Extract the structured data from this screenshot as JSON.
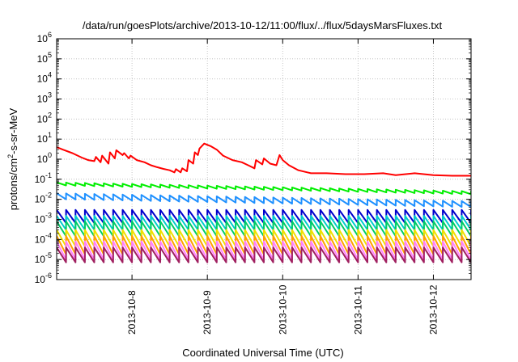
{
  "chart_data": {
    "type": "line",
    "title": "/data/run/goesPlots/archive/2013-10-12/11:00/flux/../flux/5daysMarsFluxes.txt",
    "xlabel": "Coordinated Universal Time (UTC)",
    "ylabel": "protons/cm2-s-sr-MeV",
    "y_scale": "log",
    "ylim": [
      1e-06,
      1000000.0
    ],
    "xlim": [
      "2013-10-07T00:00",
      "2013-10-12T12:00"
    ],
    "grid": true,
    "legend": "none",
    "y_ticks": [
      {
        "base": "10",
        "exp": "6"
      },
      {
        "base": "10",
        "exp": "5"
      },
      {
        "base": "10",
        "exp": "4"
      },
      {
        "base": "10",
        "exp": "3"
      },
      {
        "base": "10",
        "exp": "2"
      },
      {
        "base": "10",
        "exp": "1"
      },
      {
        "base": "10",
        "exp": "0"
      },
      {
        "base": "10",
        "exp": "-1"
      },
      {
        "base": "10",
        "exp": "-2"
      },
      {
        "base": "10",
        "exp": "-3"
      },
      {
        "base": "10",
        "exp": "-4"
      },
      {
        "base": "10",
        "exp": "-5"
      },
      {
        "base": "10",
        "exp": "-6"
      }
    ],
    "x_ticks": [
      "2013-10-8",
      "2013-10-9",
      "2013-10-10",
      "2013-10-11",
      "2013-10-12"
    ],
    "series": [
      {
        "color": "#ff0000",
        "x": [
          "2013-10-07T00:00",
          "2013-10-07T02:00",
          "2013-10-07T05:00",
          "2013-10-07T08:00",
          "2013-10-07T10:00",
          "2013-10-07T12:00",
          "2013-10-07T12:30",
          "2013-10-07T14:00",
          "2013-10-07T14:30",
          "2013-10-07T16:30",
          "2013-10-07T17:00",
          "2013-10-07T18:30",
          "2013-10-07T19:00",
          "2013-10-07T21:00",
          "2013-10-07T21:30",
          "2013-10-07T23:00",
          "2013-10-07T23:30",
          "2013-10-08T01:30",
          "2013-10-08T04:00",
          "2013-10-08T06:00",
          "2013-10-08T08:00",
          "2013-10-08T10:00",
          "2013-10-08T12:00",
          "2013-10-08T13:30",
          "2013-10-08T14:00",
          "2013-10-08T15:30",
          "2013-10-08T16:00",
          "2013-10-08T17:30",
          "2013-10-08T18:00",
          "2013-10-08T19:30",
          "2013-10-08T20:00",
          "2013-10-08T21:00",
          "2013-10-08T21:30",
          "2013-10-08T23:00",
          "2013-10-09T01:00",
          "2013-10-09T03:00",
          "2013-10-09T05:00",
          "2013-10-09T08:00",
          "2013-10-09T11:00",
          "2013-10-09T13:00",
          "2013-10-09T15:00",
          "2013-10-09T15:30",
          "2013-10-09T17:30",
          "2013-10-09T18:00",
          "2013-10-09T20:00",
          "2013-10-09T22:00",
          "2013-10-09T23:00",
          "2013-10-10T00:00",
          "2013-10-10T02:00",
          "2013-10-10T05:00",
          "2013-10-10T09:00",
          "2013-10-10T14:00",
          "2013-10-10T20:00",
          "2013-10-11T02:00",
          "2013-10-11T08:00",
          "2013-10-11T12:00",
          "2013-10-11T18:00",
          "2013-10-12T00:00",
          "2013-10-12T06:00",
          "2013-10-12T12:00"
        ],
        "y": [
          4,
          3,
          2,
          1.2,
          0.9,
          0.8,
          1.3,
          0.7,
          1.5,
          0.6,
          2.2,
          1.1,
          2.8,
          1.6,
          2.0,
          1.1,
          1.5,
          0.9,
          0.7,
          0.5,
          0.4,
          0.33,
          0.28,
          0.22,
          0.32,
          0.22,
          0.35,
          0.25,
          0.9,
          0.6,
          2.2,
          1.6,
          3.4,
          6.0,
          4.5,
          3.0,
          1.5,
          0.9,
          0.7,
          0.5,
          0.35,
          0.9,
          0.55,
          1.1,
          0.6,
          0.5,
          1.6,
          0.9,
          0.5,
          0.28,
          0.2,
          0.2,
          0.18,
          0.18,
          0.2,
          0.16,
          0.2,
          0.16,
          0.15,
          0.15
        ]
      },
      {
        "color": "#00ee00",
        "x_start": "2013-10-07T00:00",
        "x_end": "2013-10-12T12:00",
        "period_hours": 3,
        "y_start_high": 0.07,
        "y_end_high": 0.025,
        "decay_ratio": 0.7
      },
      {
        "color": "#1e90ff",
        "x_start": "2013-10-07T00:00",
        "x_end": "2013-10-12T12:00",
        "period_hours": 3,
        "y_start_high": 0.02,
        "y_end_high": 0.008,
        "decay_ratio": 0.5
      },
      {
        "color": "#0000cd",
        "x_start": "2013-10-07T00:00",
        "x_end": "2013-10-12T12:00",
        "period_hours": 3,
        "y_start_high": 0.003,
        "y_end_high": 0.003,
        "decay_ratio": 0.22
      },
      {
        "color": "#00cdcd",
        "x_start": "2013-10-07T00:00",
        "x_end": "2013-10-12T12:00",
        "period_hours": 3,
        "y_start_high": 0.0015,
        "y_end_high": 0.0015,
        "decay_ratio": 0.2
      },
      {
        "color": "#00cc66",
        "x_start": "2013-10-07T00:00",
        "x_end": "2013-10-12T12:00",
        "period_hours": 3,
        "y_start_high": 0.0008,
        "y_end_high": 0.0008,
        "decay_ratio": 0.18
      },
      {
        "color": "#f0e000",
        "x_start": "2013-10-07T00:00",
        "x_end": "2013-10-12T12:00",
        "period_hours": 3,
        "y_start_high": 0.0003,
        "y_end_high": 0.0003,
        "decay_ratio": 0.15
      },
      {
        "color": "#ffa000",
        "x_start": "2013-10-07T00:00",
        "x_end": "2013-10-12T12:00",
        "period_hours": 3,
        "y_start_high": 0.00015,
        "y_end_high": 0.00015,
        "decay_ratio": 0.12
      },
      {
        "color": "#ff80ff",
        "x_start": "2013-10-07T00:00",
        "x_end": "2013-10-12T12:00",
        "period_hours": 3,
        "y_start_high": 8e-05,
        "y_end_high": 8e-05,
        "decay_ratio": 0.12
      },
      {
        "color": "#a02060",
        "x_start": "2013-10-07T00:00",
        "x_end": "2013-10-12T12:00",
        "period_hours": 3,
        "y_start_high": 4e-05,
        "y_end_high": 4e-05,
        "decay_ratio": 0.18
      }
    ]
  }
}
